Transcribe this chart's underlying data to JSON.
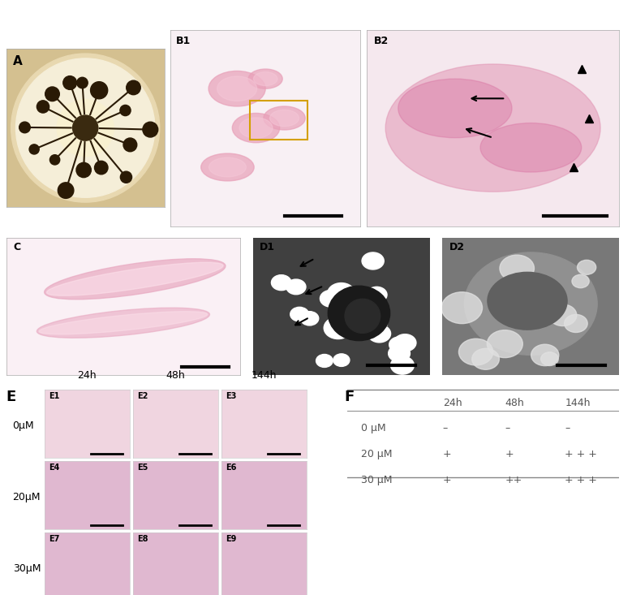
{
  "panel_A_label": "A",
  "panel_B1_label": "B1",
  "panel_B2_label": "B2",
  "panel_C_label": "C",
  "panel_D1_label": "D1",
  "panel_D2_label": "D2",
  "panel_E_label": "E",
  "panel_F_label": "F",
  "E_col_labels": [
    "24h",
    "48h",
    "144h"
  ],
  "E_row_labels": [
    "0μM",
    "20μM",
    "30μM"
  ],
  "E_sublabels": [
    [
      "E1",
      "E2",
      "E3"
    ],
    [
      "E4",
      "E5",
      "E6"
    ],
    [
      "E7",
      "E8",
      "E9"
    ]
  ],
  "table_header": [
    "",
    "24h",
    "48h",
    "144h"
  ],
  "table_rows": [
    [
      "0 μM",
      "–",
      "–",
      "–"
    ],
    [
      "20 μM",
      "+",
      "+",
      "+ + +"
    ],
    [
      "30 μM",
      "+",
      "++",
      "+ + +"
    ]
  ],
  "bg_color": "#ffffff",
  "panel_A_color": "#c8b89a",
  "panel_B1_color": "#f0d8e0",
  "panel_B2_color": "#f0d8e0",
  "panel_C_color": "#f0d8e0",
  "panel_D1_color": "#808080",
  "panel_D2_color": "#a0a0a0",
  "panel_E_color": "#f0d0dc",
  "text_color": "#333333",
  "table_text_color": "#555555"
}
